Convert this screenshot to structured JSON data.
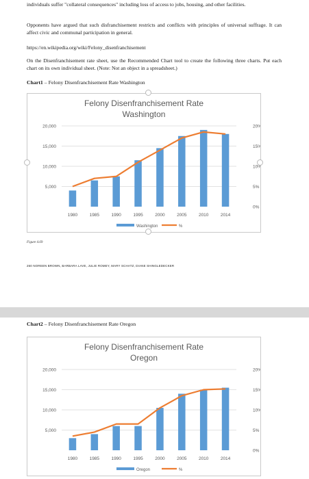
{
  "document": {
    "intro_text": "individuals suffer \"collateral consequences\" including loss of access to jobs, housing, and other facilities.",
    "argument_text": "Opponents have argued that such disfranchisement restricts and conflicts with principles of universal suffrage. It can affect civic and communal participation in general.",
    "url": "https://en.wikipedia.org/wiki/Felony_disenfranchisement",
    "instructions": "On the Disenfranchisement rate sheet, use the Recommended Chart tool to create the following three charts. Put each chart on its own individual sheet. (Note: Not an object in a spreadsheet.)",
    "chart1_caption_bold": "Chart1",
    "chart1_caption_rest": " – Felony Disenfranchisement Rate Washington",
    "figure_label": "Figure 4.69",
    "footer_text": "260 NOREEN BROWN, BARBARA LAVE, JULIE ROMEY, MARY SCHATZ, DIANE SHINGLEDECKER",
    "chart2_caption_bold": "Chart2",
    "chart2_caption_rest": " – Felony Disenfranchisement Rate Oregon"
  },
  "chart_data": [
    {
      "type": "bar",
      "title_line1": "Felony Disenfranchisement Rate",
      "title_line2": "Washington",
      "categories": [
        "1980",
        "1985",
        "1990",
        "1995",
        "2000",
        "2005",
        "2010",
        "2014"
      ],
      "series": [
        {
          "name": "Washington",
          "type": "bar",
          "axis": "left",
          "color": "#5b9bd5",
          "values": [
            4000,
            6500,
            7500,
            11500,
            14500,
            17500,
            19000,
            18000
          ]
        },
        {
          "name": "%",
          "type": "line",
          "axis": "right",
          "color": "#ed7d31",
          "values": [
            0.05,
            0.07,
            0.075,
            0.11,
            0.14,
            0.17,
            0.185,
            0.18
          ]
        }
      ],
      "left_axis": {
        "min": 0,
        "max": 20000,
        "ticks": [
          "20,000",
          "15,000",
          "10,000",
          "5,000"
        ]
      },
      "right_axis": {
        "min": 0,
        "max": 0.2,
        "ticks": [
          "20%",
          "15%",
          "10%",
          "5%",
          "0%"
        ]
      },
      "legend_position": "bottom",
      "grid": true
    },
    {
      "type": "bar",
      "title_line1": "Felony Disenfranchisement Rate",
      "title_line2": "Oregon",
      "categories": [
        "1980",
        "1985",
        "1990",
        "1995",
        "2000",
        "2005",
        "2010",
        "2014"
      ],
      "series": [
        {
          "name": "Oregon",
          "type": "bar",
          "axis": "left",
          "color": "#5b9bd5",
          "values": [
            3000,
            4000,
            6000,
            6000,
            10500,
            14000,
            15000,
            15500
          ]
        },
        {
          "name": "%",
          "type": "line",
          "axis": "right",
          "color": "#ed7d31",
          "values": [
            0.035,
            0.045,
            0.065,
            0.065,
            0.105,
            0.135,
            0.15,
            0.152
          ]
        }
      ],
      "left_axis": {
        "min": 0,
        "max": 20000,
        "ticks": [
          "20,000",
          "15,000",
          "10,000",
          "5,000"
        ]
      },
      "right_axis": {
        "min": 0,
        "max": 0.2,
        "ticks": [
          "20%",
          "15%",
          "10%",
          "5%",
          "0%"
        ]
      },
      "legend_position": "bottom",
      "grid": true
    }
  ]
}
